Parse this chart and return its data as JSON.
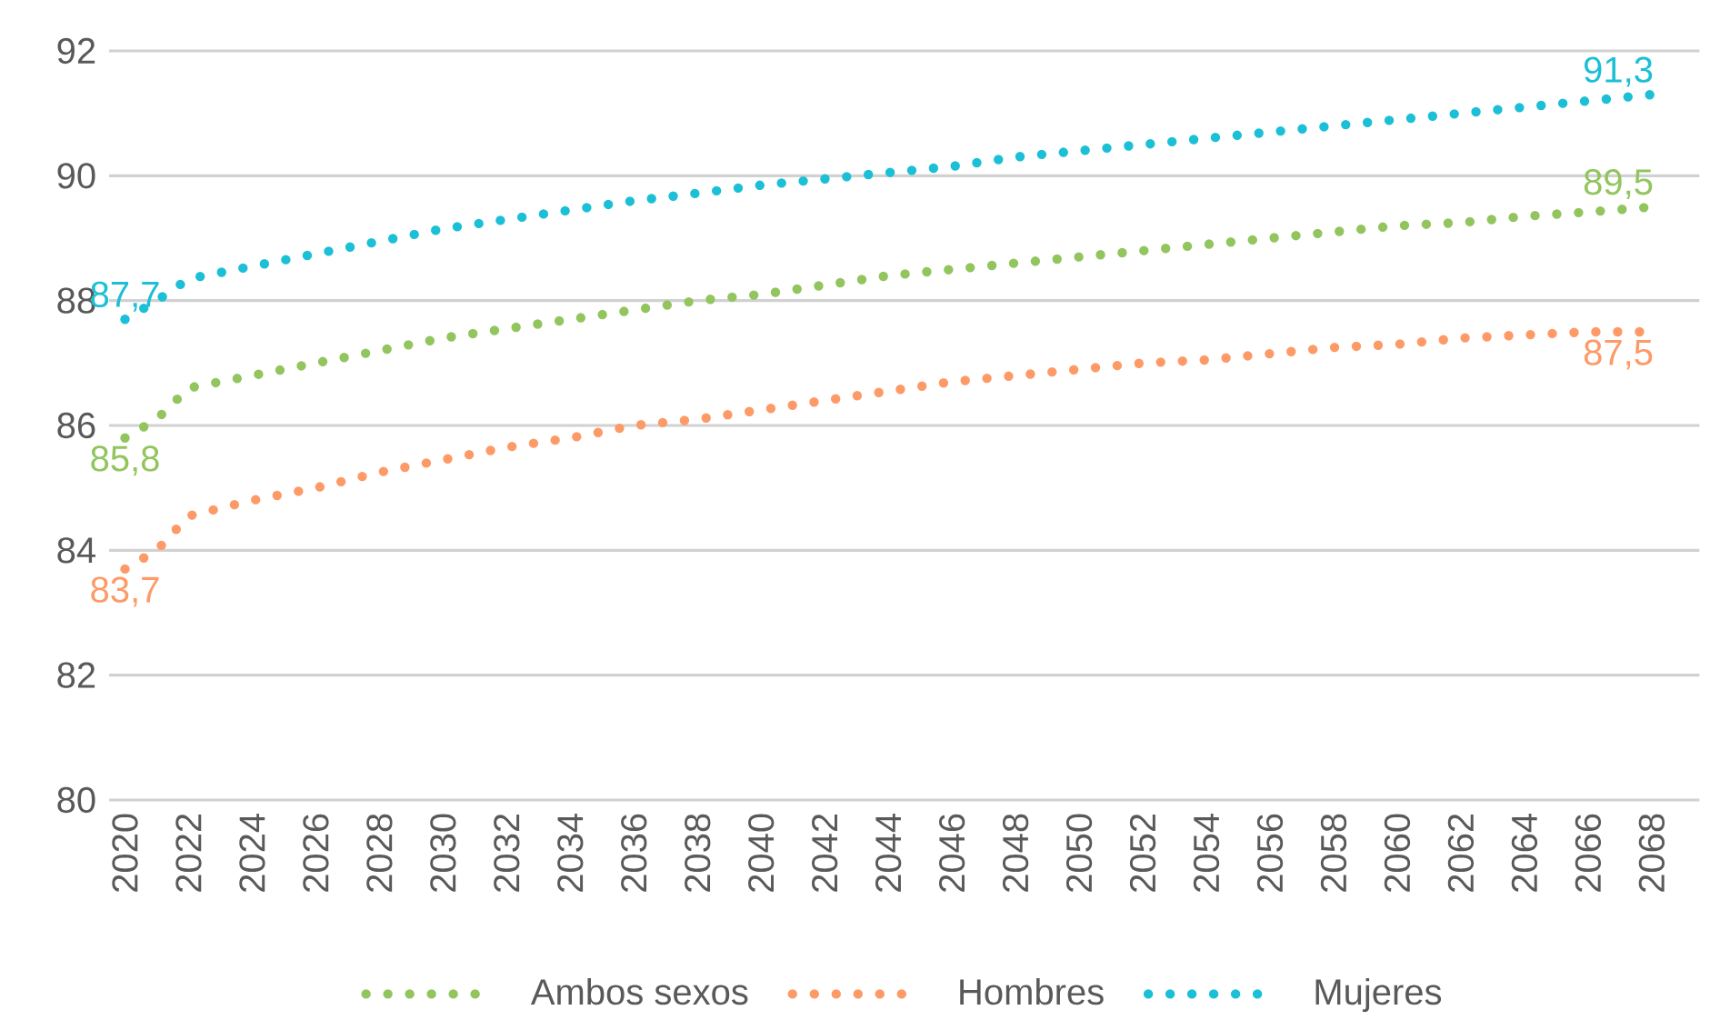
{
  "chart_data": {
    "type": "line",
    "x": [
      2020,
      2021,
      2022,
      2024,
      2026,
      2028,
      2030,
      2032,
      2034,
      2036,
      2038,
      2040,
      2042,
      2044,
      2046,
      2048,
      2050,
      2052,
      2054,
      2056,
      2058,
      2060,
      2062,
      2064,
      2066,
      2068
    ],
    "series": [
      {
        "name": "Ambos sexos",
        "color": "#92c55e",
        "values": [
          85.8,
          86.1,
          86.6,
          86.8,
          87.0,
          87.2,
          87.4,
          87.55,
          87.7,
          87.85,
          88.0,
          88.1,
          88.25,
          88.4,
          88.5,
          88.6,
          88.7,
          88.8,
          88.9,
          89.0,
          89.1,
          89.2,
          89.25,
          89.35,
          89.42,
          89.5
        ],
        "value_labels": [
          "85,8",
          null,
          null,
          null,
          null,
          null,
          null,
          null,
          null,
          null,
          null,
          null,
          null,
          null,
          null,
          null,
          null,
          null,
          null,
          null,
          null,
          null,
          null,
          null,
          null,
          "89,5"
        ]
      },
      {
        "name": "Hombres",
        "color": "#fd9a67",
        "values": [
          83.7,
          84.0,
          84.55,
          84.8,
          85.0,
          85.25,
          85.45,
          85.65,
          85.8,
          86.0,
          86.1,
          86.25,
          86.4,
          86.55,
          86.7,
          86.8,
          86.9,
          87.0,
          87.05,
          87.15,
          87.25,
          87.3,
          87.4,
          87.45,
          87.5,
          87.5
        ],
        "value_labels": [
          "83,7",
          null,
          null,
          null,
          null,
          null,
          null,
          null,
          null,
          null,
          null,
          null,
          null,
          null,
          null,
          null,
          null,
          null,
          null,
          null,
          null,
          null,
          null,
          null,
          null,
          "87,5"
        ]
      },
      {
        "name": "Mujeres",
        "color": "#1bbfd6",
        "values": [
          87.7,
          88.0,
          88.35,
          88.55,
          88.75,
          88.95,
          89.15,
          89.3,
          89.45,
          89.6,
          89.72,
          89.85,
          89.95,
          90.05,
          90.15,
          90.3,
          90.4,
          90.5,
          90.6,
          90.7,
          90.8,
          90.9,
          91.0,
          91.1,
          91.2,
          91.3
        ],
        "value_labels": [
          "87,7",
          null,
          null,
          null,
          null,
          null,
          null,
          null,
          null,
          null,
          null,
          null,
          null,
          null,
          null,
          null,
          null,
          null,
          null,
          null,
          null,
          null,
          null,
          null,
          null,
          "91,3"
        ]
      }
    ],
    "xlim": [
      2019.5,
      2069.5
    ],
    "xticks": [
      2020,
      2022,
      2024,
      2026,
      2028,
      2030,
      2032,
      2034,
      2036,
      2038,
      2040,
      2042,
      2044,
      2046,
      2048,
      2050,
      2052,
      2054,
      2056,
      2058,
      2060,
      2062,
      2064,
      2066,
      2068
    ],
    "ylim": [
      80,
      92
    ],
    "yticks": [
      80,
      82,
      84,
      86,
      88,
      90,
      92
    ],
    "grid": "y",
    "legend": "bottom",
    "line_style": "dotted",
    "marker": "none"
  }
}
